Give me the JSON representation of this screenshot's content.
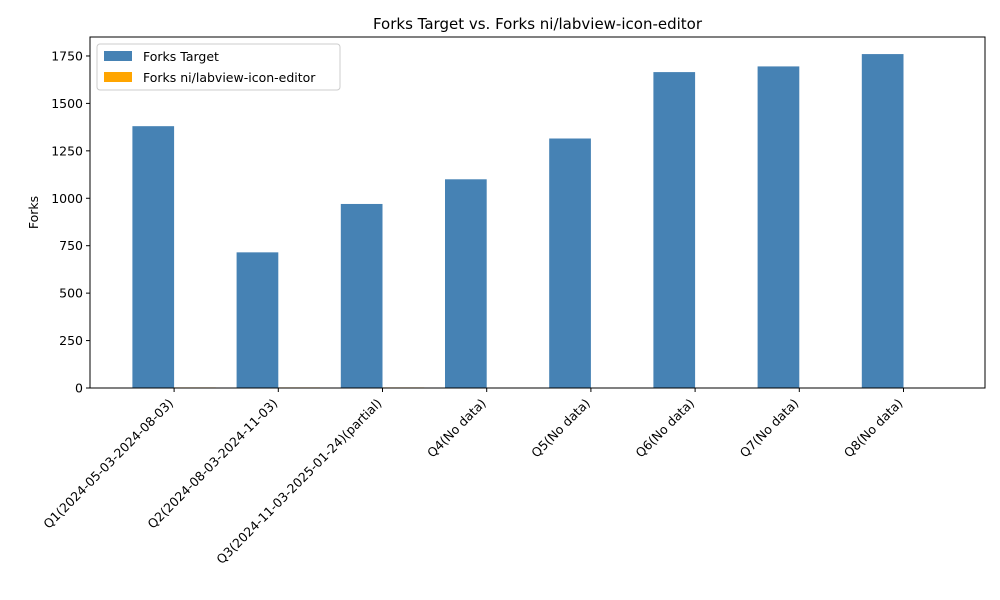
{
  "chart_data": {
    "type": "bar",
    "title": "Forks Target vs. Forks ni/labview-icon-editor",
    "xlabel": "",
    "ylabel": "Forks",
    "ylim": [
      0,
      1850
    ],
    "yticks": [
      0,
      250,
      500,
      750,
      1000,
      1250,
      1500,
      1750
    ],
    "categories": [
      "Q1(2024-05-03-2024-08-03)",
      "Q2(2024-08-03-2024-11-03)",
      "Q3(2024-11-03-2025-01-24)(partial)",
      "Q4(No data)",
      "Q5(No data)",
      "Q6(No data)",
      "Q7(No data)",
      "Q8(No data)"
    ],
    "series": [
      {
        "name": "Forks Target",
        "color": "#4682b4",
        "values": [
          1380,
          715,
          970,
          1100,
          1315,
          1665,
          1695,
          1760
        ]
      },
      {
        "name": "Forks ni/labview-icon-editor",
        "color": "#ffa500",
        "values": [
          3,
          3,
          3,
          0,
          0,
          0,
          0,
          0
        ]
      }
    ],
    "legend_position": "top-left",
    "grid": false
  }
}
